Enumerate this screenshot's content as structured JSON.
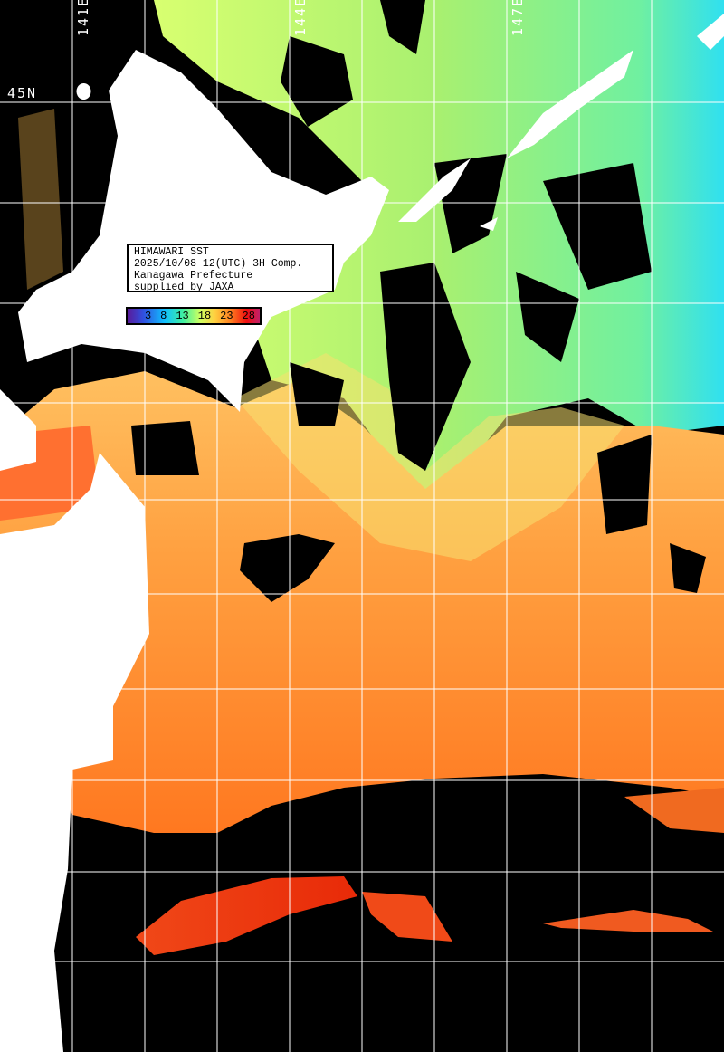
{
  "title_box": {
    "line1": "HIMAWARI SST",
    "line2": "2025/10/08 12(UTC) 3H Comp.",
    "line3": "Kanagawa Prefecture",
    "line4": "supplied by JAXA"
  },
  "colorbar": {
    "ticks": [
      "3",
      "8",
      "13",
      "18",
      "23",
      "28"
    ],
    "colors": [
      "#5a1a9a",
      "#3050e0",
      "#10c0ff",
      "#40f0a0",
      "#d0ff60",
      "#ffd040",
      "#ff8020",
      "#f01010",
      "#c0206a"
    ]
  },
  "grid_labels": {
    "lon": [
      "141E",
      "144E",
      "147E"
    ],
    "lat": [
      "45N"
    ]
  },
  "colors": {
    "land": "#ffffff",
    "no_data": "#000000",
    "warm": "#ff9a3c",
    "cool": "#a8f070",
    "hot": "#f03a10"
  }
}
